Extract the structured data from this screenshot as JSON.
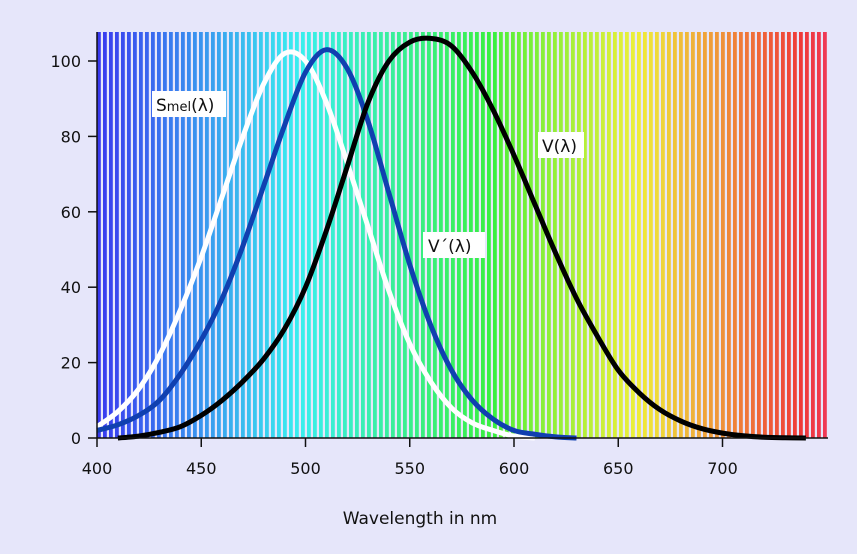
{
  "chart_data": {
    "type": "line",
    "title": "",
    "xlabel": "Wavelength in nm",
    "ylabel": "",
    "xlim": [
      400,
      750
    ],
    "ylim": [
      0,
      107
    ],
    "x_ticks": [
      400,
      450,
      500,
      550,
      600,
      650,
      700
    ],
    "y_ticks": [
      0,
      20,
      40,
      60,
      80,
      100
    ],
    "grid": false,
    "legend": "none",
    "background": "spectrum-stripes",
    "series": [
      {
        "name": "Smel(λ)",
        "color": "#ffffff",
        "x": [
          400,
          410,
          420,
          430,
          440,
          450,
          460,
          470,
          480,
          490,
          500,
          510,
          520,
          530,
          540,
          550,
          560,
          570,
          580,
          590,
          600,
          610
        ],
        "y": [
          3,
          7,
          13,
          22,
          34,
          48,
          64,
          80,
          94,
          102,
          100,
          89,
          73,
          56,
          39,
          25,
          15,
          8,
          4,
          2,
          0.5,
          0
        ]
      },
      {
        "name": "V´(λ)",
        "color": "#1040b0",
        "x": [
          400,
          410,
          420,
          430,
          440,
          450,
          460,
          470,
          480,
          490,
          500,
          510,
          520,
          530,
          540,
          550,
          560,
          570,
          580,
          590,
          600,
          610,
          620,
          630
        ],
        "y": [
          2,
          3.5,
          6,
          10,
          17,
          26,
          37,
          51,
          67,
          83,
          97,
          103,
          98,
          84,
          65,
          46,
          30,
          18,
          10,
          5,
          2,
          1,
          0.3,
          0
        ]
      },
      {
        "name": "V(λ)",
        "color": "#000000",
        "x": [
          410,
          420,
          430,
          440,
          450,
          460,
          470,
          480,
          490,
          500,
          510,
          520,
          530,
          540,
          550,
          560,
          570,
          580,
          590,
          600,
          610,
          620,
          630,
          640,
          650,
          660,
          670,
          680,
          690,
          700,
          710,
          720,
          730,
          740
        ],
        "y": [
          0,
          0.5,
          1.5,
          3,
          6,
          10,
          15,
          21,
          29,
          40,
          55,
          72,
          89,
          100,
          105,
          106,
          104,
          97,
          87,
          75,
          62,
          49,
          37,
          27,
          18,
          12,
          7.5,
          4.5,
          2.5,
          1.3,
          0.6,
          0.2,
          0.05,
          0
        ]
      }
    ]
  },
  "labels": {
    "smel_main": "S",
    "smel_sub": "mel",
    "smel_rest": "(λ)",
    "v_prime": "V´(λ)",
    "v": "V(λ)"
  }
}
